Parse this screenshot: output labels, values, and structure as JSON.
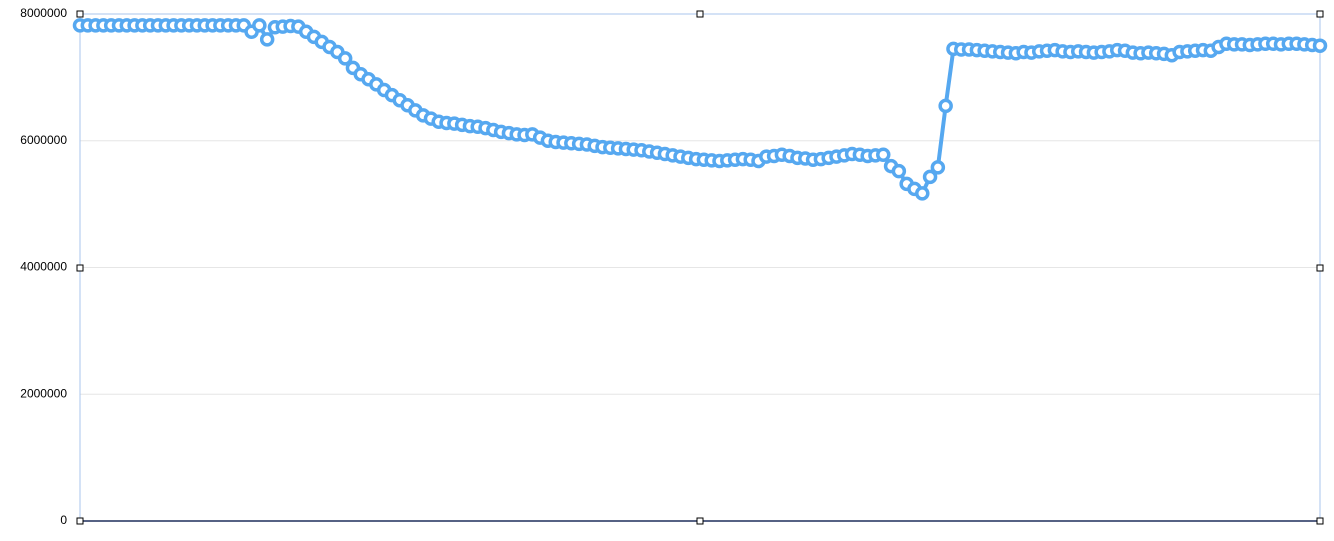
{
  "chart_data": {
    "type": "line",
    "color": "#56a8f0",
    "grid": true,
    "ylim": [
      0,
      8000000
    ],
    "yticks": [
      0,
      2000000,
      4000000,
      6000000,
      8000000
    ],
    "categories": [
      null,
      null,
      null,
      null,
      null,
      null,
      null,
      null,
      null,
      null,
      null,
      null,
      null,
      null,
      null,
      null,
      null,
      null,
      null,
      null,
      null,
      null,
      null,
      null,
      null,
      null,
      null,
      null,
      null,
      null,
      null,
      null,
      null,
      null,
      null,
      null,
      null,
      null,
      null,
      null,
      null,
      null,
      null,
      null,
      null,
      null,
      null,
      null,
      null,
      null,
      null,
      null,
      null,
      null,
      null,
      null,
      null,
      null,
      null,
      null,
      null,
      null,
      null,
      null,
      null,
      null,
      null,
      null,
      null,
      null,
      null,
      null,
      null,
      null,
      null,
      null,
      null,
      null,
      null,
      null,
      null,
      null,
      null,
      null,
      null,
      null,
      null,
      null,
      null,
      null,
      null,
      null,
      null,
      null,
      null,
      null,
      null,
      null,
      null,
      null,
      null,
      null,
      null,
      null,
      null,
      null,
      null,
      null,
      null,
      null,
      null,
      null,
      null,
      null,
      null,
      null,
      null,
      null,
      null,
      null,
      null,
      null,
      null,
      null,
      null,
      null,
      null,
      null,
      null,
      null,
      null,
      null,
      null,
      null,
      null,
      null,
      null,
      null,
      null,
      null,
      null,
      null,
      null,
      null,
      null,
      null,
      null,
      null,
      null,
      null,
      null,
      null,
      null,
      null,
      null,
      null,
      null,
      null,
      null,
      null
    ],
    "values": [
      7820000,
      7820000,
      7820000,
      7820000,
      7820000,
      7820000,
      7820000,
      7820000,
      7820000,
      7820000,
      7820000,
      7820000,
      7820000,
      7820000,
      7820000,
      7820000,
      7820000,
      7820000,
      7820000,
      7820000,
      7820000,
      7820000,
      7720000,
      7820000,
      7600000,
      7790000,
      7800000,
      7810000,
      7800000,
      7720000,
      7640000,
      7560000,
      7480000,
      7400000,
      7300000,
      7150000,
      7050000,
      6970000,
      6890000,
      6800000,
      6720000,
      6640000,
      6560000,
      6480000,
      6400000,
      6350000,
      6300000,
      6280000,
      6270000,
      6250000,
      6230000,
      6220000,
      6200000,
      6170000,
      6140000,
      6120000,
      6100000,
      6090000,
      6100000,
      6050000,
      6000000,
      5980000,
      5970000,
      5960000,
      5950000,
      5940000,
      5920000,
      5900000,
      5890000,
      5880000,
      5870000,
      5860000,
      5850000,
      5830000,
      5810000,
      5790000,
      5770000,
      5750000,
      5730000,
      5710000,
      5700000,
      5690000,
      5680000,
      5690000,
      5700000,
      5710000,
      5700000,
      5680000,
      5750000,
      5760000,
      5780000,
      5760000,
      5730000,
      5720000,
      5700000,
      5710000,
      5730000,
      5750000,
      5770000,
      5790000,
      5780000,
      5760000,
      5770000,
      5780000,
      5600000,
      5520000,
      5320000,
      5240000,
      5170000,
      5430000,
      5580000,
      6550000,
      7450000,
      7440000,
      7440000,
      7430000,
      7420000,
      7410000,
      7400000,
      7390000,
      7380000,
      7400000,
      7390000,
      7410000,
      7420000,
      7430000,
      7410000,
      7400000,
      7410000,
      7400000,
      7390000,
      7400000,
      7410000,
      7430000,
      7420000,
      7390000,
      7380000,
      7390000,
      7380000,
      7370000,
      7350000,
      7400000,
      7410000,
      7420000,
      7430000,
      7420000,
      7480000,
      7530000,
      7520000,
      7520000,
      7510000,
      7520000,
      7530000,
      7530000,
      7520000,
      7530000,
      7530000,
      7520000,
      7510000,
      7500000
    ]
  }
}
